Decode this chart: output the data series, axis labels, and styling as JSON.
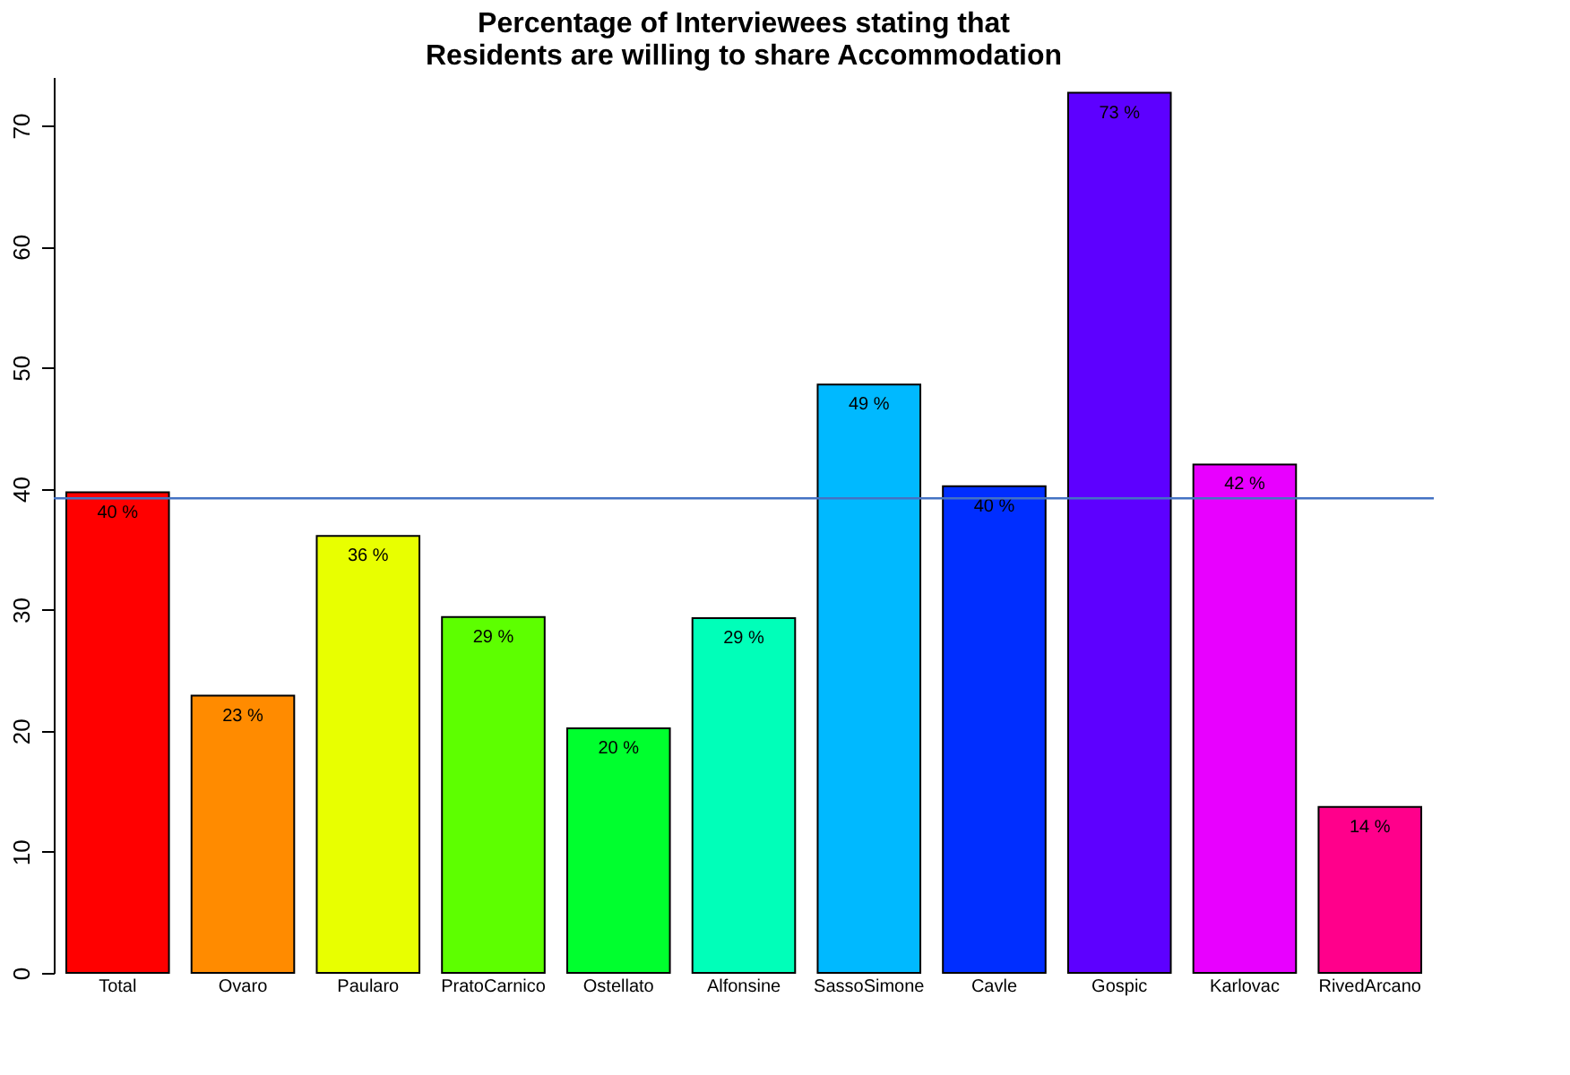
{
  "chart_data": {
    "type": "bar",
    "title": "Percentage of Interviewees stating that\nResidents are willing to share Accommodation",
    "categories": [
      "Total",
      "Ovaro",
      "Paularo",
      "PratoCarnico",
      "Ostellato",
      "Alfonsine",
      "SassoSimone",
      "Cavle",
      "Gospic",
      "Karlovac",
      "RivedArcano"
    ],
    "values": [
      39.7,
      22.9,
      36.1,
      29.4,
      20.2,
      29.3,
      48.6,
      40.2,
      72.7,
      42.0,
      13.7
    ],
    "colors": [
      "#ff0000",
      "#ff8b00",
      "#e8ff00",
      "#5dff00",
      "#00ff2e",
      "#00ffb9",
      "#00b9ff",
      "#002eff",
      "#5d00ff",
      "#e800ff",
      "#ff008b"
    ],
    "value_labels": [
      "40 %",
      "23 %",
      "36 %",
      "29 %",
      "20 %",
      "29 %",
      "49 %",
      "40 %",
      "73 %",
      "42 %",
      "14 %"
    ],
    "ylim": [
      0,
      74
    ],
    "yticks": [
      0,
      10,
      20,
      30,
      40,
      50,
      60,
      70
    ],
    "ref_lines": [
      {
        "axis": "y",
        "value": 39.2,
        "color": "#4472c4"
      }
    ],
    "grid": false
  }
}
